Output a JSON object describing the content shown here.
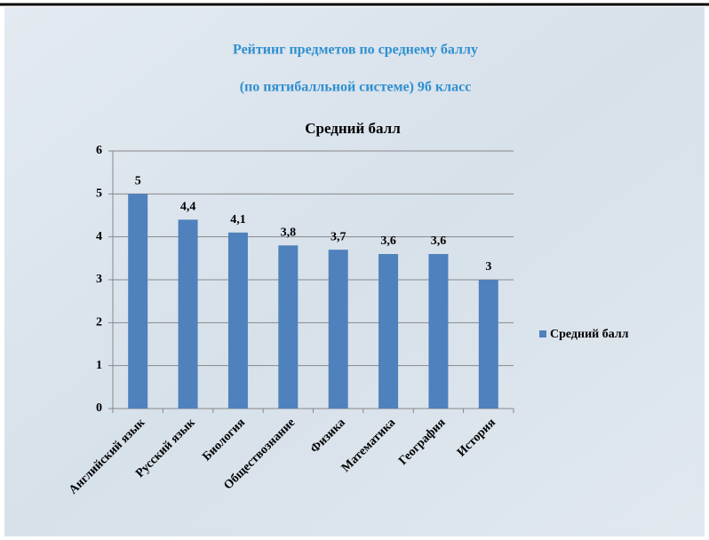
{
  "chart_data": {
    "type": "bar",
    "title": "Рейтинг предметов по среднему баллу",
    "subtitle": "(по пятибалльной системе) 9б класс",
    "chart_title": "Средний балл",
    "categories": [
      "Английский язык",
      "Русский язык",
      "Биология",
      "Обществознание",
      "Физика",
      "Математика",
      "География",
      "История"
    ],
    "series": [
      {
        "name": "Средний балл",
        "color": "#4f81bd",
        "values": [
          5,
          4.4,
          4.1,
          3.8,
          3.7,
          3.6,
          3.6,
          3
        ],
        "value_labels": [
          "5",
          "4,4",
          "4,1",
          "3,8",
          "3,7",
          "3,6",
          "3,6",
          "3"
        ]
      }
    ],
    "ylim": [
      0,
      6
    ],
    "yticks": [
      0,
      1,
      2,
      3,
      4,
      5,
      6
    ],
    "grid": true,
    "legend": "right"
  }
}
